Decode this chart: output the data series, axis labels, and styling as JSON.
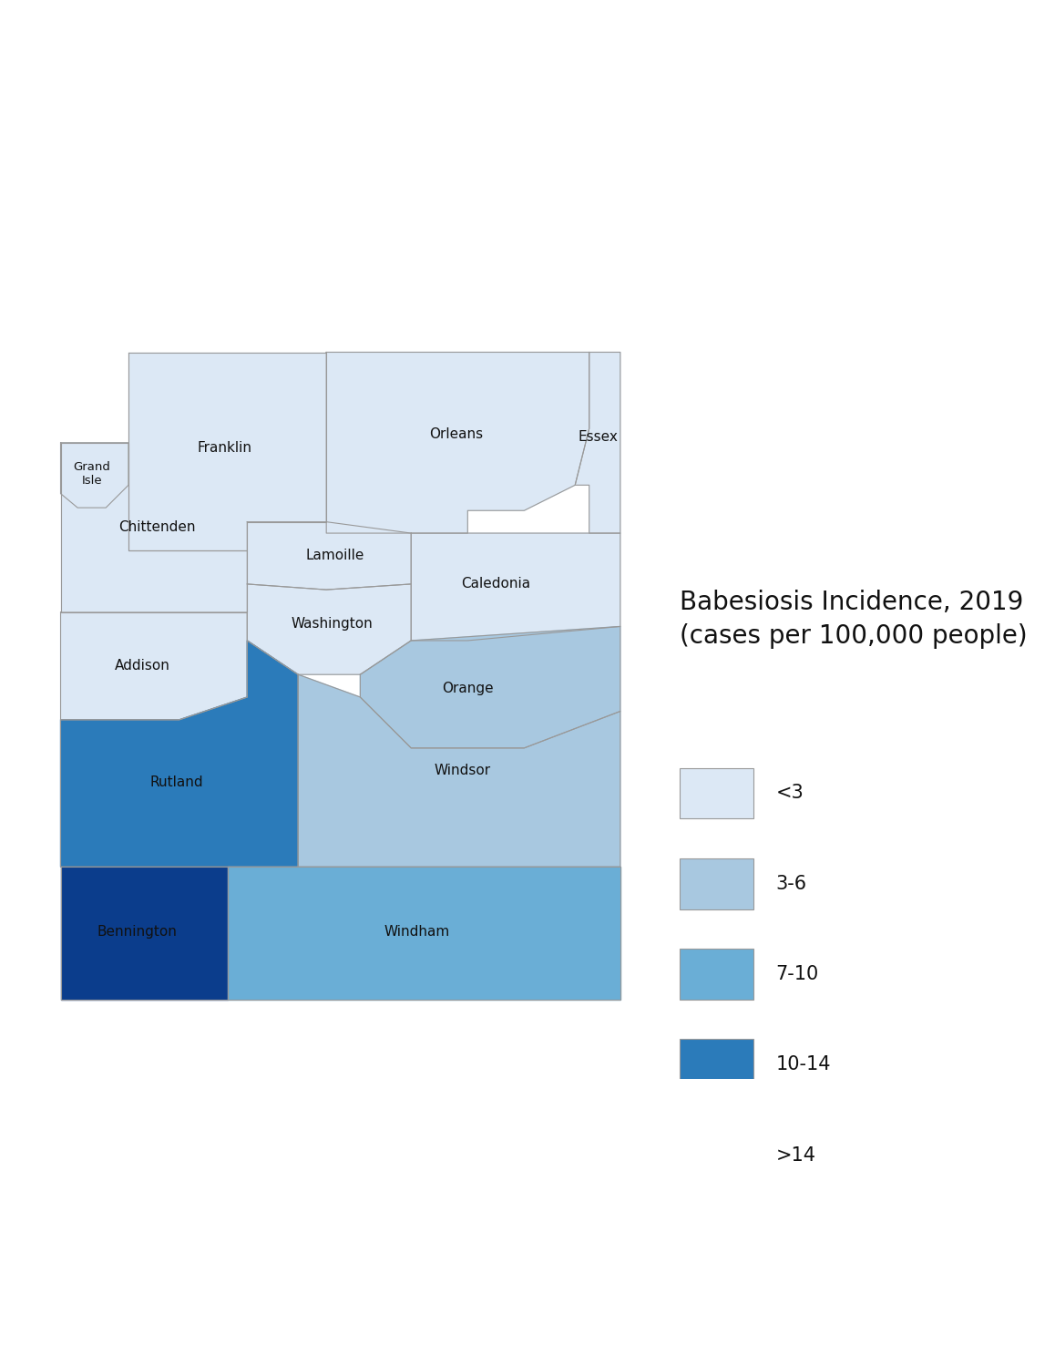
{
  "title_line1": "Babesiosis Incidence, 2019",
  "title_line2": "(cases per 100,000 people)",
  "title_fontsize": 20,
  "background_color": "#ffffff",
  "counties": {
    "Grand Isle": "<3",
    "Franklin": "<3",
    "Orleans": "<3",
    "Essex": "<3",
    "Lamoille": "<3",
    "Chittenden": "<3",
    "Caledonia": "<3",
    "Washington": "<3",
    "Addison": "<3",
    "Orange": "3-6",
    "Windsor": "3-6",
    "Rutland": "10-14",
    "Windham": "7-10",
    "Bennington": ">14"
  },
  "category_colors": {
    "<3": "#dce8f5",
    "3-6": "#a8c8e0",
    "7-10": "#6aaed6",
    "10-14": "#2b7bba",
    ">14": "#0b3d8c"
  },
  "legend_labels": [
    "<3",
    "3-6",
    "7-10",
    "10-14",
    ">14"
  ],
  "label_color": "#111111",
  "border_color": "#999999",
  "border_width": 0.8
}
